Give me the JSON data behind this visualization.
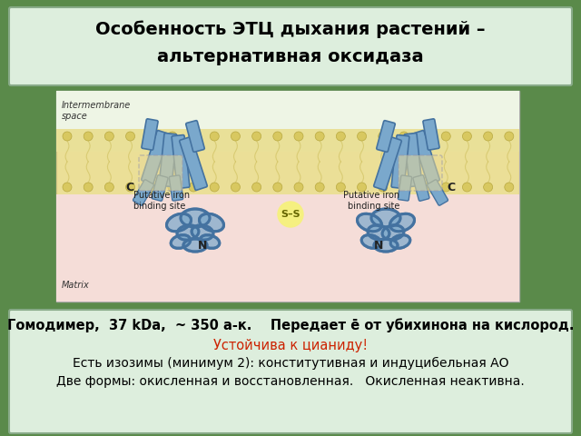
{
  "title_line1": "Особенность ЭТЦ дыхания растений –",
  "title_line2": "альтернативная оксидаза",
  "title_fontsize": 14,
  "title_box_color": "#ddeedd",
  "title_text_color": "#000000",
  "slide_bg": "#5a8a4a",
  "diagram_bg": "#f5f0e0",
  "bottom_box_color": "#ddeedd",
  "bottom_text_lines": [
    {
      "text": "Гомодимер,  37 kDa,  ~ 350 а-к.    Передает ē от убихинона на кислород.",
      "color": "#000000",
      "bold": true,
      "fontsize": 10.5
    },
    {
      "text": "Устойчива к цианиду!",
      "color": "#cc2200",
      "bold": false,
      "fontsize": 10.5
    },
    {
      "text": "Есть изозимы (минимум 2): конститутивная и индуцибельная АО",
      "color": "#000000",
      "bold": false,
      "fontsize": 10
    },
    {
      "text": "Две формы: окисленная и восстановленная.   Окисленная неактивна.",
      "color": "#000000",
      "bold": false,
      "fontsize": 10
    }
  ],
  "intermembrane_label": "Intermembrane\nspace",
  "matrix_label": "Matrix",
  "protein_color": "#7aa8cc",
  "protein_edge": "#4472a0",
  "membrane_color": "#e8d878",
  "matrix_bg": "#f5ddd8",
  "inter_bg": "#eef5e8",
  "ss_bg": "#f5f080",
  "ss_color": "#666600"
}
